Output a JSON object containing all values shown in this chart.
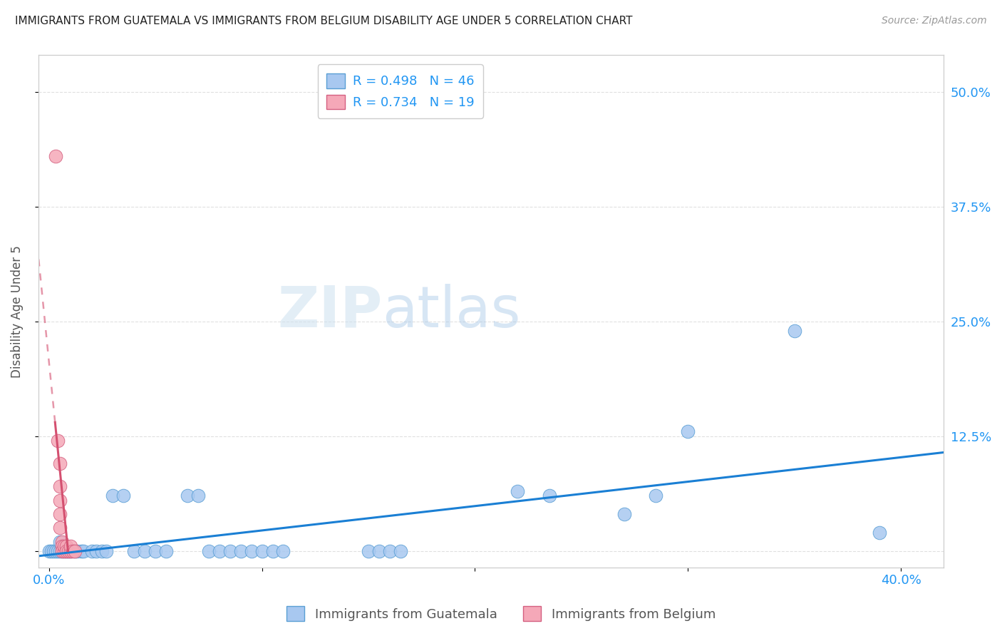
{
  "title": "IMMIGRANTS FROM GUATEMALA VS IMMIGRANTS FROM BELGIUM DISABILITY AGE UNDER 5 CORRELATION CHART",
  "source": "Source: ZipAtlas.com",
  "ylabel": "Disability Age Under 5",
  "watermark_zip": "ZIP",
  "watermark_atlas": "atlas",
  "xlim": [
    -0.005,
    0.42
  ],
  "ylim": [
    -0.018,
    0.54
  ],
  "x_ticks": [
    0.0,
    0.1,
    0.2,
    0.3,
    0.4
  ],
  "x_tick_labels": [
    "0.0%",
    "",
    "",
    "",
    "40.0%"
  ],
  "y_ticks": [
    0.0,
    0.125,
    0.25,
    0.375,
    0.5
  ],
  "y_tick_right_labels": [
    "",
    "12.5%",
    "25.0%",
    "37.5%",
    "50.0%"
  ],
  "scatter_guatemala_color": "#a8c8f0",
  "scatter_guatemala_edge": "#5a9fd4",
  "scatter_belgium_color": "#f5a8b8",
  "scatter_belgium_edge": "#d46080",
  "trendline_guatemala_color": "#1a7fd4",
  "trendline_belgium_color": "#d45070",
  "bg_color": "#ffffff",
  "grid_color": "#cccccc",
  "title_color": "#222222",
  "tick_label_color": "#2196f3",
  "scatter_guatemala_points": [
    [
      0.0,
      0.0
    ],
    [
      0.001,
      0.0
    ],
    [
      0.002,
      0.0
    ],
    [
      0.003,
      0.0
    ],
    [
      0.004,
      0.0
    ],
    [
      0.005,
      0.0
    ],
    [
      0.005,
      0.01
    ],
    [
      0.006,
      0.0
    ],
    [
      0.007,
      0.0
    ],
    [
      0.008,
      0.0
    ],
    [
      0.009,
      0.0
    ],
    [
      0.01,
      0.0
    ],
    [
      0.012,
      0.0
    ],
    [
      0.013,
      0.0
    ],
    [
      0.015,
      0.0
    ],
    [
      0.016,
      0.0
    ],
    [
      0.02,
      0.0
    ],
    [
      0.022,
      0.0
    ],
    [
      0.025,
      0.0
    ],
    [
      0.027,
      0.0
    ],
    [
      0.03,
      0.06
    ],
    [
      0.035,
      0.06
    ],
    [
      0.04,
      0.0
    ],
    [
      0.045,
      0.0
    ],
    [
      0.05,
      0.0
    ],
    [
      0.055,
      0.0
    ],
    [
      0.065,
      0.06
    ],
    [
      0.07,
      0.06
    ],
    [
      0.075,
      0.0
    ],
    [
      0.08,
      0.0
    ],
    [
      0.085,
      0.0
    ],
    [
      0.09,
      0.0
    ],
    [
      0.095,
      0.0
    ],
    [
      0.1,
      0.0
    ],
    [
      0.105,
      0.0
    ],
    [
      0.11,
      0.0
    ],
    [
      0.15,
      0.0
    ],
    [
      0.155,
      0.0
    ],
    [
      0.16,
      0.0
    ],
    [
      0.165,
      0.0
    ],
    [
      0.22,
      0.065
    ],
    [
      0.235,
      0.06
    ],
    [
      0.27,
      0.04
    ],
    [
      0.285,
      0.06
    ],
    [
      0.3,
      0.13
    ],
    [
      0.35,
      0.24
    ],
    [
      0.39,
      0.02
    ]
  ],
  "scatter_belgium_points": [
    [
      0.003,
      0.43
    ],
    [
      0.004,
      0.12
    ],
    [
      0.005,
      0.095
    ],
    [
      0.005,
      0.07
    ],
    [
      0.005,
      0.055
    ],
    [
      0.005,
      0.04
    ],
    [
      0.005,
      0.025
    ],
    [
      0.006,
      0.01
    ],
    [
      0.006,
      0.005
    ],
    [
      0.006,
      0.0
    ],
    [
      0.007,
      0.0
    ],
    [
      0.007,
      0.005
    ],
    [
      0.008,
      0.005
    ],
    [
      0.008,
      0.0
    ],
    [
      0.009,
      0.0
    ],
    [
      0.01,
      0.0
    ],
    [
      0.01,
      0.005
    ],
    [
      0.011,
      0.0
    ],
    [
      0.012,
      0.0
    ]
  ],
  "legend_R_color": "#2196f3",
  "legend_N_color": "#2196f3"
}
